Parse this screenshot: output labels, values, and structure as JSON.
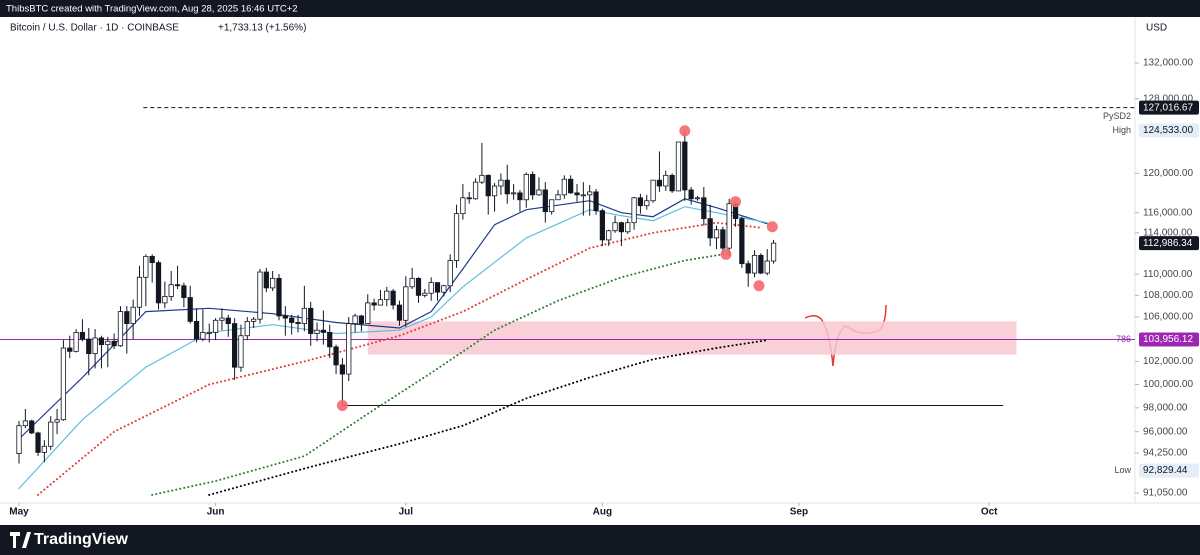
{
  "header": {
    "credit": "ThibsBTC created with TradingView.com, Aug 28, 2025 16:46 UTC+2",
    "symbol": "Bitcoin / U.S. Dollar · 1D · COINBASE",
    "change": "+1,733.13 (+1.56%)",
    "currency": "USD",
    "logo": "TradingView"
  },
  "chart_data": {
    "type": "candlestick",
    "log_scale": true,
    "grid": false,
    "up_color": "#ffffff",
    "down_color": "#131722",
    "wick_color": "#131722",
    "xlim": [
      -3,
      176
    ],
    "xticks": [
      {
        "value": 0,
        "label": "May"
      },
      {
        "value": 31,
        "label": "Jun"
      },
      {
        "value": 61,
        "label": "Jul"
      },
      {
        "value": 92,
        "label": "Aug"
      },
      {
        "value": 123,
        "label": "Sep"
      },
      {
        "value": 153,
        "label": "Oct"
      }
    ],
    "ylim": [
      90500,
      137600
    ],
    "yticks": [
      {
        "value": 132000,
        "label": "132,000.00"
      },
      {
        "value": 128000,
        "label": "128,000.00"
      },
      {
        "value": 120000,
        "label": "120,000.00"
      },
      {
        "value": 116000,
        "label": "116,000.00"
      },
      {
        "value": 114000,
        "label": "114,000.00"
      },
      {
        "value": 110000,
        "label": "110,000.00"
      },
      {
        "value": 108000,
        "label": "108,000.00"
      },
      {
        "value": 106000,
        "label": "106,000.00"
      },
      {
        "value": 102000,
        "label": "102,000.00"
      },
      {
        "value": 100000,
        "label": "100,000.00"
      },
      {
        "value": 98000,
        "label": "98,000.00"
      },
      {
        "value": 96000,
        "label": "96,000.00"
      },
      {
        "value": 94250,
        "label": "94,250.00"
      },
      {
        "value": 91050,
        "label": "91,050.00"
      }
    ],
    "candles": [
      [
        94200,
        96900,
        93400,
        96500
      ],
      [
        96500,
        97900,
        96300,
        96900
      ],
      [
        96900,
        97000,
        95800,
        95900
      ],
      [
        95900,
        96000,
        94000,
        94300
      ],
      [
        94300,
        95300,
        93500,
        94800
      ],
      [
        94800,
        97300,
        94500,
        96800
      ],
      [
        96800,
        97900,
        95800,
        97000
      ],
      [
        97000,
        103900,
        96900,
        103200
      ],
      [
        103200,
        104300,
        102300,
        102900
      ],
      [
        102900,
        104900,
        102800,
        104600
      ],
      [
        104600,
        105800,
        103800,
        104000
      ],
      [
        104000,
        105000,
        100800,
        102700
      ],
      [
        102700,
        104900,
        101400,
        104100
      ],
      [
        104100,
        104300,
        101400,
        103500
      ],
      [
        103500,
        104200,
        101500,
        103800
      ],
      [
        103800,
        104500,
        103100,
        103400
      ],
      [
        103400,
        107000,
        103300,
        106500
      ],
      [
        106500,
        107000,
        102700,
        105400
      ],
      [
        105400,
        107600,
        104000,
        106900
      ],
      [
        106900,
        110800,
        106100,
        109700
      ],
      [
        109700,
        111900,
        107000,
        111700
      ],
      [
        111700,
        111900,
        109200,
        111100
      ],
      [
        111100,
        111300,
        106700,
        107300
      ],
      [
        107300,
        109300,
        106800,
        107900
      ],
      [
        107900,
        110300,
        107500,
        109000
      ],
      [
        109000,
        110800,
        108600,
        108900
      ],
      [
        108900,
        109200,
        106900,
        107800
      ],
      [
        107800,
        108900,
        105400,
        105600
      ],
      [
        105600,
        106800,
        103700,
        104000
      ],
      [
        104000,
        106700,
        103800,
        104600
      ],
      [
        104600,
        105400,
        103700,
        104600
      ],
      [
        104600,
        105900,
        103900,
        105700
      ],
      [
        105700,
        106800,
        104800,
        105900
      ],
      [
        105900,
        106200,
        104200,
        105400
      ],
      [
        105400,
        105900,
        100400,
        101500
      ],
      [
        101500,
        105300,
        101100,
        104300
      ],
      [
        104300,
        106000,
        103900,
        105600
      ],
      [
        105600,
        106000,
        105000,
        105800
      ],
      [
        105800,
        110500,
        105400,
        110200
      ],
      [
        110200,
        110600,
        108300,
        108700
      ],
      [
        108700,
        110300,
        108400,
        109600
      ],
      [
        109600,
        110000,
        105700,
        106100
      ],
      [
        106100,
        107000,
        104300,
        105900
      ],
      [
        105900,
        106200,
        104400,
        105500
      ],
      [
        105500,
        106200,
        104600,
        105400
      ],
      [
        105400,
        108900,
        104700,
        106800
      ],
      [
        106800,
        107400,
        103400,
        104500
      ],
      [
        104500,
        105500,
        103800,
        104800
      ],
      [
        104800,
        106600,
        103500,
        104600
      ],
      [
        104600,
        105300,
        102300,
        103300
      ],
      [
        103300,
        103500,
        100900,
        101700
      ],
      [
        101700,
        102300,
        98200,
        100900
      ],
      [
        100900,
        106000,
        100300,
        105400
      ],
      [
        105400,
        106300,
        104600,
        106100
      ],
      [
        106100,
        106200,
        104700,
        105400
      ],
      [
        105400,
        108100,
        105400,
        107300
      ],
      [
        107300,
        107700,
        106600,
        107100
      ],
      [
        107100,
        108500,
        107100,
        107600
      ],
      [
        107600,
        108800,
        107000,
        108400
      ],
      [
        108400,
        108600,
        106700,
        107100
      ],
      [
        107100,
        107500,
        105200,
        105700
      ],
      [
        105700,
        109800,
        105100,
        108800
      ],
      [
        108800,
        110600,
        108600,
        109600
      ],
      [
        109600,
        109700,
        107300,
        108000
      ],
      [
        108000,
        108600,
        107800,
        108200
      ],
      [
        108200,
        109700,
        107500,
        109200
      ],
      [
        109200,
        109200,
        107500,
        108300
      ],
      [
        108300,
        109000,
        107900,
        108900
      ],
      [
        108900,
        111900,
        108300,
        111300
      ],
      [
        111300,
        116800,
        110600,
        115900
      ],
      [
        115900,
        118900,
        115300,
        117500
      ],
      [
        117500,
        118100,
        116900,
        117400
      ],
      [
        117400,
        119500,
        117300,
        119100
      ],
      [
        119100,
        123200,
        118900,
        119800
      ],
      [
        119800,
        119900,
        115800,
        117700
      ],
      [
        117700,
        119000,
        116100,
        118700
      ],
      [
        118700,
        120000,
        117800,
        119300
      ],
      [
        119300,
        120900,
        116900,
        117900
      ],
      [
        117900,
        118900,
        117300,
        118000
      ],
      [
        118000,
        118300,
        116100,
        117300
      ],
      [
        117300,
        120100,
        116500,
        119900
      ],
      [
        119900,
        120200,
        117300,
        117800
      ],
      [
        117800,
        119600,
        117700,
        118300
      ],
      [
        118300,
        119100,
        115000,
        116100
      ],
      [
        116100,
        117300,
        115800,
        117300
      ],
      [
        117300,
        118300,
        117300,
        117800
      ],
      [
        117800,
        119800,
        117400,
        119400
      ],
      [
        119400,
        119800,
        117900,
        118000
      ],
      [
        118000,
        118900,
        117100,
        117800
      ],
      [
        117800,
        119100,
        115700,
        117800
      ],
      [
        117800,
        118800,
        115700,
        118100
      ],
      [
        118100,
        118400,
        115800,
        116200
      ],
      [
        116200,
        116400,
        112700,
        113300
      ],
      [
        113300,
        114300,
        112700,
        114200
      ],
      [
        114200,
        115700,
        114000,
        115000
      ],
      [
        115000,
        115100,
        112700,
        114100
      ],
      [
        114100,
        115400,
        113900,
        115000
      ],
      [
        115000,
        117600,
        114300,
        117500
      ],
      [
        117500,
        117900,
        115900,
        116700
      ],
      [
        116700,
        117800,
        116300,
        117200
      ],
      [
        117200,
        119300,
        117000,
        119300
      ],
      [
        119300,
        122300,
        118100,
        118700
      ],
      [
        118700,
        120300,
        118200,
        119800
      ],
      [
        119800,
        120000,
        118000,
        118200
      ],
      [
        118200,
        123300,
        118200,
        123300
      ],
      [
        123300,
        124533,
        117200,
        118300
      ],
      [
        118300,
        118600,
        116800,
        117400
      ],
      [
        117400,
        117700,
        117200,
        117500
      ],
      [
        117500,
        118600,
        114700,
        115400
      ],
      [
        115400,
        116800,
        112700,
        113500
      ],
      [
        113500,
        114700,
        112400,
        114300
      ],
      [
        114300,
        114600,
        112000,
        112500
      ],
      [
        112500,
        117400,
        111700,
        116900
      ],
      [
        116900,
        117000,
        114600,
        115400
      ],
      [
        115400,
        115600,
        110600,
        111000
      ],
      [
        111000,
        111300,
        108800,
        110100
      ],
      [
        110100,
        112300,
        109700,
        111800
      ],
      [
        111800,
        112000,
        110000,
        110100
      ],
      [
        110100,
        112400,
        109900,
        111253
      ],
      [
        111253,
        113300,
        111000,
        112986.34
      ]
    ],
    "overlays": [
      {
        "color": "#1e3a8a",
        "style": "solid",
        "x": [
          0,
          10,
          20,
          30,
          40,
          50,
          60,
          65,
          70,
          75,
          80,
          90,
          95,
          100,
          105,
          110,
          118
        ],
        "values": [
          95400,
          100600,
          106500,
          106800,
          106300,
          105500,
          105000,
          106500,
          110500,
          114800,
          116300,
          117200,
          116000,
          115600,
          117400,
          116500,
          114900
        ]
      },
      {
        "color": "#5bc0de",
        "style": "solid",
        "x": [
          0,
          10,
          20,
          30,
          40,
          50,
          60,
          65,
          70,
          80,
          90,
          95,
          100,
          105,
          110,
          118
        ],
        "values": [
          91400,
          97000,
          101500,
          104600,
          105300,
          104500,
          104800,
          106000,
          108800,
          113500,
          116300,
          115700,
          115200,
          116600,
          116000,
          115000
        ]
      },
      {
        "color": "#e53935",
        "style": "dotted",
        "x": [
          3,
          15,
          30,
          45,
          60,
          70,
          80,
          90,
          100,
          110,
          117
        ],
        "values": [
          90900,
          96000,
          100000,
          102000,
          104300,
          106500,
          109500,
          112500,
          114000,
          115000,
          114500
        ]
      },
      {
        "color": "#2e7d32",
        "style": "dotted",
        "x": [
          21,
          31,
          45,
          55,
          65,
          75,
          85,
          95,
          105,
          112
        ],
        "values": [
          90900,
          92000,
          94000,
          97500,
          101000,
          104800,
          107500,
          109700,
          111300,
          112000
        ]
      },
      {
        "color": "#000000",
        "style": "dotted",
        "x": [
          30,
          45,
          60,
          70,
          80,
          90,
          100,
          110,
          118
        ],
        "values": [
          90900,
          93000,
          95000,
          96500,
          98800,
          100600,
          102200,
          103200,
          103900
        ]
      }
    ],
    "markers": [
      {
        "x": 51,
        "y": 98200
      },
      {
        "x": 105,
        "y": 124500
      },
      {
        "x": 111.5,
        "y": 111900
      },
      {
        "x": 113,
        "y": 117100
      },
      {
        "x": 116.7,
        "y": 108900
      },
      {
        "x": 118.8,
        "y": 114600
      }
    ],
    "marker_color": "#f4676e",
    "zone": {
      "x0": 55,
      "x1": 157.3,
      "low": 102600,
      "high": 105600,
      "color": "#f8c8d0"
    },
    "support": {
      "x0": 51,
      "x1": 155.2,
      "value": 98200
    },
    "price_labels": [
      {
        "value": 127016.67,
        "label": "127,016.67",
        "note": "PySD2",
        "color": "#131722",
        "text_color": "#ffffff",
        "line": "dashed",
        "x0": 19.6
      },
      {
        "value": 124533,
        "label": "124,533.00",
        "note": "High",
        "color": "#e3eef8",
        "text_color": "#131722"
      },
      {
        "value": 112986.34,
        "label": "112,986.34",
        "color": "#131722",
        "text_color": "#ffffff"
      },
      {
        "value": 103956.12,
        "label": "103,956.12",
        "note": "786",
        "color": "#9c27b0",
        "text_color": "#ffffff",
        "line": "solid",
        "x0": -3
      },
      {
        "value": 92829.44,
        "label": "92,829.44",
        "note": "Low",
        "color": "#e3eef8",
        "text_color": "#131722"
      }
    ]
  }
}
